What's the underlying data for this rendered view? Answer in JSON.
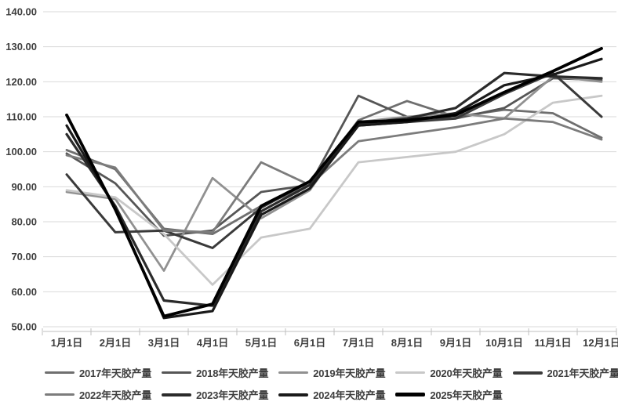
{
  "chart_data": {
    "type": "line",
    "title": "",
    "xlabel": "",
    "ylabel": "",
    "categories": [
      "1月1日",
      "2月1日",
      "3月1日",
      "4月1日",
      "5月1日",
      "6月1日",
      "7月1日",
      "8月1日",
      "9月1日",
      "10月1日",
      "11月1日",
      "12月1日"
    ],
    "ylim": [
      50,
      140
    ],
    "ytick_step": 10,
    "ytick_labels": [
      "50.00",
      "60.00",
      "70.00",
      "80.00",
      "90.00",
      "100.00",
      "110.00",
      "120.00",
      "130.00",
      "140.00"
    ],
    "grid": "horizontal",
    "legend_position": "bottom",
    "legend_rows": [
      5,
      4
    ],
    "series": [
      {
        "name": "2017年天胶产量",
        "color": "#6f6f6f",
        "width": 2.8,
        "swatch_h": 3,
        "values": [
          100.5,
          95,
          78,
          76.5,
          84.5,
          90.5,
          109,
          114.5,
          110,
          112,
          111,
          104
        ]
      },
      {
        "name": "2018年天胶产量",
        "color": "#565656",
        "width": 2.8,
        "swatch_h": 3,
        "values": [
          99.5,
          91,
          76,
          77.5,
          88.5,
          90.5,
          116,
          110,
          109.5,
          112.5,
          121,
          120.5
        ]
      },
      {
        "name": "2019年天胶产量",
        "color": "#919191",
        "width": 2.8,
        "swatch_h": 3,
        "values": [
          88.5,
          86.5,
          66,
          92.5,
          81,
          89,
          108.5,
          110,
          111,
          109.5,
          121.5,
          120
        ]
      },
      {
        "name": "2020年天胶产量",
        "color": "#c8c8c8",
        "width": 2.8,
        "swatch_h": 3,
        "values": [
          89,
          87,
          76.5,
          62,
          75.5,
          78,
          97,
          98.5,
          100,
          105,
          114,
          116
        ]
      },
      {
        "name": "2021年天胶产量",
        "color": "#3a3a3a",
        "width": 3.0,
        "swatch_h": 4,
        "values": [
          93.5,
          77,
          77.5,
          72.5,
          84,
          91.5,
          107.5,
          108.5,
          109.5,
          116.5,
          122.5,
          110
        ]
      },
      {
        "name": "2022年天胶产量",
        "color": "#7c7c7c",
        "width": 2.8,
        "swatch_h": 3,
        "values": [
          99,
          95.5,
          77.5,
          77,
          97,
          90.5,
          103,
          105,
          107,
          109.5,
          108.5,
          103.5
        ]
      },
      {
        "name": "2023年天胶产量",
        "color": "#2b2b2b",
        "width": 3.2,
        "swatch_h": 4,
        "values": [
          105,
          84.5,
          57.5,
          56,
          83,
          90.5,
          108,
          109.5,
          112.5,
          122.5,
          121.5,
          121
        ]
      },
      {
        "name": "2024年天胶产量",
        "color": "#1a1a1a",
        "width": 3.2,
        "swatch_h": 4,
        "values": [
          107.5,
          84,
          52.5,
          54.5,
          82,
          89.5,
          107.5,
          108.5,
          111,
          119,
          122,
          126.5
        ]
      },
      {
        "name": "2025年天胶产量",
        "color": "#000000",
        "width": 3.8,
        "swatch_h": 5,
        "values": [
          110.5,
          83.5,
          53,
          56.5,
          84.5,
          91.5,
          108.5,
          109,
          110.5,
          117,
          123,
          129.5
        ]
      }
    ],
    "colors": {
      "gridline": "#d9d9d9",
      "axis": "#bfbfbf",
      "tick_text": "#3f3f3f",
      "background": "#ffffff"
    }
  }
}
